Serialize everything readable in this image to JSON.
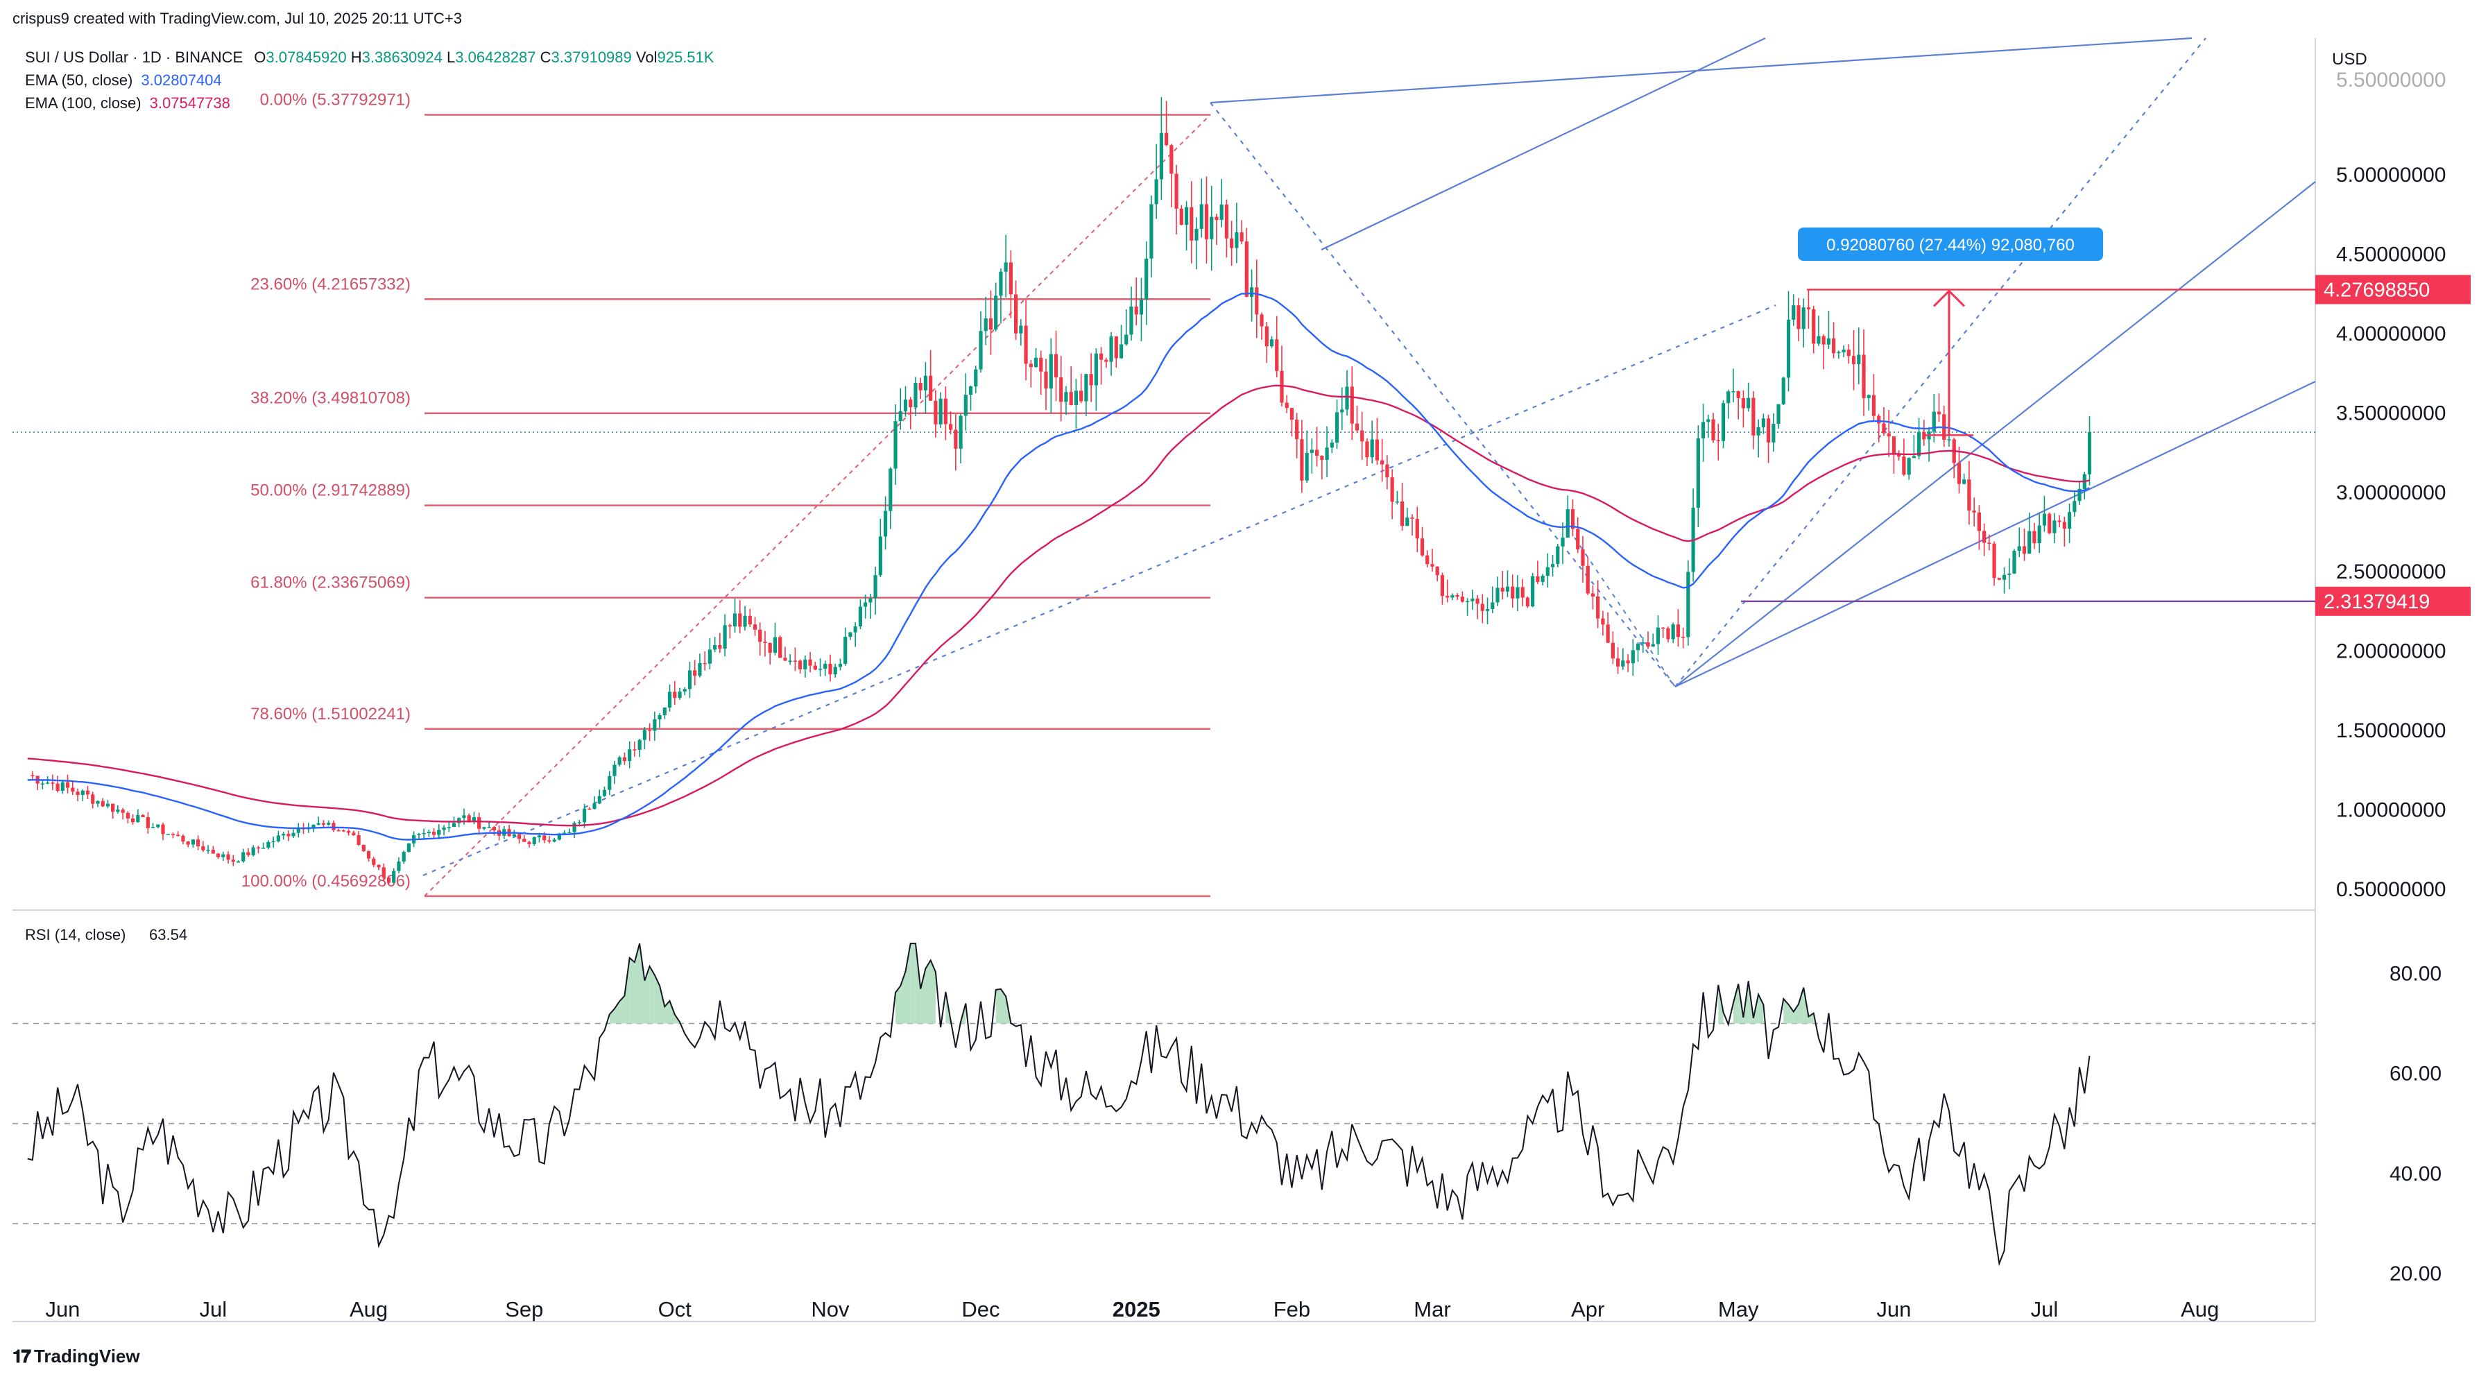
{
  "header": {
    "credit": "crispus9 created with TradingView.com, Jul 10, 2025 20:11 UTC+3",
    "symbol": "SUI / US Dollar · 1D · BINANCE",
    "ohlc": {
      "o_label": "O",
      "o": "3.07845920",
      "h_label": "H",
      "h": "3.38630924",
      "l_label": "L",
      "l": "3.06428287",
      "c_label": "C",
      "c": "3.37910989",
      "vol_label": "Vol",
      "vol": "925.51K"
    },
    "ema50_label": "EMA (50, close)",
    "ema50_value": "3.02807404",
    "ema100_label": "EMA (100, close)",
    "ema100_value": "3.07547738",
    "currency": "USD"
  },
  "colors": {
    "up": "#089981",
    "down": "#f23645",
    "ema50": "#2962ff",
    "ema100": "#d81b60",
    "fib": "#e06070",
    "channel": "#5b7fd6",
    "level_tag": "#f23654",
    "measure": "#2196f3",
    "rsi": "#131722",
    "rsi_fill": "#b7e0c4"
  },
  "chart_data": [
    {
      "type": "candlestick",
      "title": "SUI / US Dollar · 1D · BINANCE",
      "ylabel": "USD",
      "ylim": [
        0.3,
        5.4
      ],
      "x_ticks": [
        "Jun",
        "Jul",
        "Aug",
        "Sep",
        "Oct",
        "Nov",
        "Dec",
        "2025",
        "Feb",
        "Mar",
        "Apr",
        "May",
        "Jun",
        "Jul",
        "Aug"
      ],
      "y_ticks": [
        "5.00000000",
        "4.50000000",
        "4.00000000",
        "3.50000000",
        "3.00000000",
        "2.50000000",
        "2.00000000",
        "1.50000000",
        "1.00000000",
        "0.50000000"
      ],
      "price_path": [
        [
          "2024-05-25",
          1.22
        ],
        [
          "2024-06-05",
          1.1
        ],
        [
          "2024-06-20",
          0.88
        ],
        [
          "2024-07-05",
          0.68
        ],
        [
          "2024-07-20",
          0.92
        ],
        [
          "2024-07-28",
          0.86
        ],
        [
          "2024-08-05",
          0.55
        ],
        [
          "2024-08-10",
          0.82
        ],
        [
          "2024-08-20",
          0.95
        ],
        [
          "2024-09-01",
          0.8
        ],
        [
          "2024-09-10",
          0.85
        ],
        [
          "2024-09-20",
          1.3
        ],
        [
          "2024-10-01",
          1.75
        ],
        [
          "2024-10-13",
          2.2
        ],
        [
          "2024-10-20",
          2.05
        ],
        [
          "2024-11-01",
          1.85
        ],
        [
          "2024-11-10",
          2.4
        ],
        [
          "2024-11-14",
          3.4
        ],
        [
          "2024-11-20",
          3.65
        ],
        [
          "2024-11-26",
          3.3
        ],
        [
          "2024-12-05",
          4.4
        ],
        [
          "2024-12-10",
          3.9
        ],
        [
          "2024-12-20",
          3.6
        ],
        [
          "2025-01-01",
          4.1
        ],
        [
          "2025-01-06",
          5.3
        ],
        [
          "2025-01-12",
          4.6
        ],
        [
          "2025-01-18",
          4.85
        ],
        [
          "2025-01-28",
          3.9
        ],
        [
          "2025-02-03",
          3.1
        ],
        [
          "2025-02-12",
          3.55
        ],
        [
          "2025-02-24",
          2.8
        ],
        [
          "2025-03-05",
          2.3
        ],
        [
          "2025-03-20",
          2.35
        ],
        [
          "2025-03-28",
          2.8
        ],
        [
          "2025-04-07",
          1.9
        ],
        [
          "2025-04-15",
          2.15
        ],
        [
          "2025-04-20",
          2.15
        ],
        [
          "2025-04-23",
          3.3
        ],
        [
          "2025-04-30",
          3.55
        ],
        [
          "2025-05-08",
          3.4
        ],
        [
          "2025-05-12",
          4.15
        ],
        [
          "2025-05-20",
          4.0
        ],
        [
          "2025-05-27",
          3.65
        ],
        [
          "2025-06-03",
          3.2
        ],
        [
          "2025-06-10",
          3.45
        ],
        [
          "2025-06-17",
          2.85
        ],
        [
          "2025-06-22",
          2.45
        ],
        [
          "2025-06-30",
          2.8
        ],
        [
          "2025-07-07",
          2.9
        ],
        [
          "2025-07-10",
          3.38
        ]
      ],
      "current_price": 3.37910989,
      "ema50_value": 3.02807404,
      "ema100_value": 3.07547738,
      "fib_levels": [
        {
          "label": "0.00% (5.37792971)",
          "value": 5.37792971
        },
        {
          "label": "23.60% (4.21657332)",
          "value": 4.21657332
        },
        {
          "label": "38.20% (3.49810708)",
          "value": 3.49810708
        },
        {
          "label": "50.00% (2.91742889)",
          "value": 2.91742889
        },
        {
          "label": "61.80% (2.33675069)",
          "value": 2.33675069
        },
        {
          "label": "78.60% (1.51002241)",
          "value": 1.51002241
        },
        {
          "label": "100.00% (0.45692806)",
          "value": 0.45692806
        }
      ],
      "horizontal_levels": [
        {
          "label": "4.27698850",
          "value": 4.2769885
        },
        {
          "label": "2.31379419",
          "value": 2.31379419
        }
      ],
      "measure": {
        "label": "0.92080760 (27.44%) 92,080,760",
        "from": 3.36,
        "to": 4.2769885
      }
    },
    {
      "type": "line",
      "title": "RSI (14, close)",
      "value_label": "63.54",
      "ylim": [
        15,
        88
      ],
      "y_ticks": [
        "80.00",
        "60.00",
        "40.00",
        "20.00"
      ],
      "levels": [
        70,
        50,
        30
      ],
      "rsi_path": [
        [
          "2024-05-25",
          45
        ],
        [
          "2024-06-03",
          55
        ],
        [
          "2024-06-12",
          32
        ],
        [
          "2024-06-20",
          50
        ],
        [
          "2024-06-27",
          38
        ],
        [
          "2024-07-05",
          30
        ],
        [
          "2024-07-15",
          45
        ],
        [
          "2024-07-25",
          55
        ],
        [
          "2024-08-05",
          26
        ],
        [
          "2024-08-12",
          62
        ],
        [
          "2024-08-20",
          58
        ],
        [
          "2024-08-28",
          48
        ],
        [
          "2024-09-05",
          45
        ],
        [
          "2024-09-15",
          62
        ],
        [
          "2024-09-25",
          84
        ],
        [
          "2024-10-05",
          70
        ],
        [
          "2024-10-13",
          75
        ],
        [
          "2024-10-20",
          58
        ],
        [
          "2024-11-01",
          52
        ],
        [
          "2024-11-10",
          60
        ],
        [
          "2024-11-18",
          85
        ],
        [
          "2024-11-25",
          68
        ],
        [
          "2024-12-05",
          74
        ],
        [
          "2024-12-15",
          60
        ],
        [
          "2024-12-25",
          55
        ],
        [
          "2025-01-06",
          66
        ],
        [
          "2025-01-15",
          58
        ],
        [
          "2025-01-25",
          50
        ],
        [
          "2025-02-03",
          38
        ],
        [
          "2025-02-15",
          48
        ],
        [
          "2025-02-25",
          42
        ],
        [
          "2025-03-05",
          35
        ],
        [
          "2025-03-15",
          42
        ],
        [
          "2025-03-28",
          55
        ],
        [
          "2025-04-07",
          35
        ],
        [
          "2025-04-18",
          46
        ],
        [
          "2025-04-23",
          70
        ],
        [
          "2025-05-01",
          76
        ],
        [
          "2025-05-08",
          67
        ],
        [
          "2025-05-15",
          74
        ],
        [
          "2025-05-25",
          60
        ],
        [
          "2025-06-03",
          38
        ],
        [
          "2025-06-12",
          52
        ],
        [
          "2025-06-22",
          28
        ],
        [
          "2025-06-30",
          45
        ],
        [
          "2025-07-07",
          52
        ],
        [
          "2025-07-10",
          63.54
        ]
      ]
    }
  ]
}
